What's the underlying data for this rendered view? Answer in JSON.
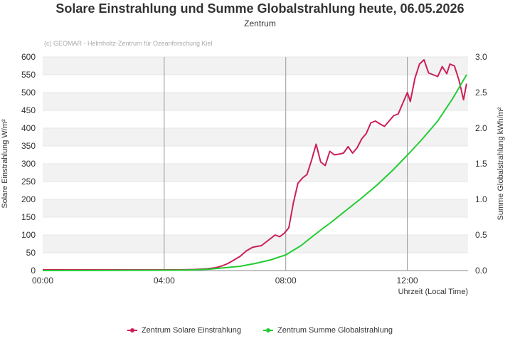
{
  "header": {
    "title": "Solare Einstrahlung und Summe Globalstrahlung heute, 06.05.2026",
    "subtitle": "Zentrum"
  },
  "chart_data": {
    "type": "line",
    "credits": "(c) GEOMAR - Helmholtz-Zentrum für Ozeanforschung Kiel",
    "xlabel": "Uhrzeit (Local Time)",
    "ylabel_left": "Solare Einstrahlung W/m²",
    "ylabel_right": "Summe Globalstrahlung kWh/m²",
    "xlim": [
      0,
      14
    ],
    "ylim_left": [
      0,
      600
    ],
    "ylim_right": [
      0,
      3.0
    ],
    "x_ticks": [
      0,
      4,
      8,
      12
    ],
    "x_tick_labels": [
      "00:00",
      "04:00",
      "08:00",
      "12:00"
    ],
    "y_ticks_left": [
      0,
      50,
      100,
      150,
      200,
      250,
      300,
      350,
      400,
      450,
      500,
      550,
      600
    ],
    "y_ticks_right": [
      0.0,
      0.5,
      1.0,
      1.5,
      2.0,
      2.5,
      3.0
    ],
    "y_tick_labels_right": [
      "0.0",
      "0.5",
      "1.0",
      "1.5",
      "2.0",
      "2.5",
      "3.0"
    ],
    "legend_position": "bottom",
    "series": [
      {
        "name": "Zentrum Solare Einstrahlung",
        "axis": "left",
        "color": "#cc1f56",
        "x": [
          0,
          4.5,
          5.0,
          5.4,
          5.7,
          5.9,
          6.1,
          6.3,
          6.5,
          6.7,
          6.9,
          7.0,
          7.2,
          7.35,
          7.5,
          7.65,
          7.8,
          7.95,
          8.1,
          8.25,
          8.4,
          8.55,
          8.7,
          8.85,
          9.0,
          9.15,
          9.3,
          9.45,
          9.6,
          9.75,
          9.9,
          10.05,
          10.2,
          10.35,
          10.5,
          10.65,
          10.8,
          10.95,
          11.1,
          11.25,
          11.4,
          11.55,
          11.7,
          11.85,
          12.0,
          12.1,
          12.25,
          12.4,
          12.55,
          12.7,
          12.85,
          13.0,
          13.15,
          13.3,
          13.4,
          13.55,
          13.7,
          13.85,
          13.95
        ],
        "y": [
          2,
          2,
          3,
          5,
          8,
          13,
          20,
          30,
          40,
          55,
          65,
          67,
          70,
          80,
          90,
          100,
          95,
          105,
          120,
          190,
          245,
          260,
          270,
          310,
          355,
          305,
          295,
          335,
          325,
          327,
          330,
          348,
          330,
          345,
          370,
          385,
          415,
          420,
          412,
          405,
          420,
          435,
          440,
          470,
          500,
          475,
          540,
          580,
          592,
          555,
          550,
          545,
          573,
          553,
          580,
          575,
          535,
          480,
          525
        ]
      },
      {
        "name": "Zentrum Summe Globalstrahlung",
        "axis": "right",
        "color": "#22cc33",
        "x": [
          0,
          4.5,
          5.0,
          5.5,
          6.0,
          6.5,
          7.0,
          7.5,
          8.0,
          8.5,
          9.0,
          9.5,
          10.0,
          10.5,
          11.0,
          11.5,
          12.0,
          12.5,
          13.0,
          13.5,
          13.95
        ],
        "y": [
          0.0,
          0.005,
          0.01,
          0.02,
          0.04,
          0.06,
          0.1,
          0.15,
          0.22,
          0.35,
          0.52,
          0.68,
          0.85,
          1.02,
          1.2,
          1.4,
          1.62,
          1.85,
          2.1,
          2.42,
          2.75
        ]
      }
    ]
  }
}
